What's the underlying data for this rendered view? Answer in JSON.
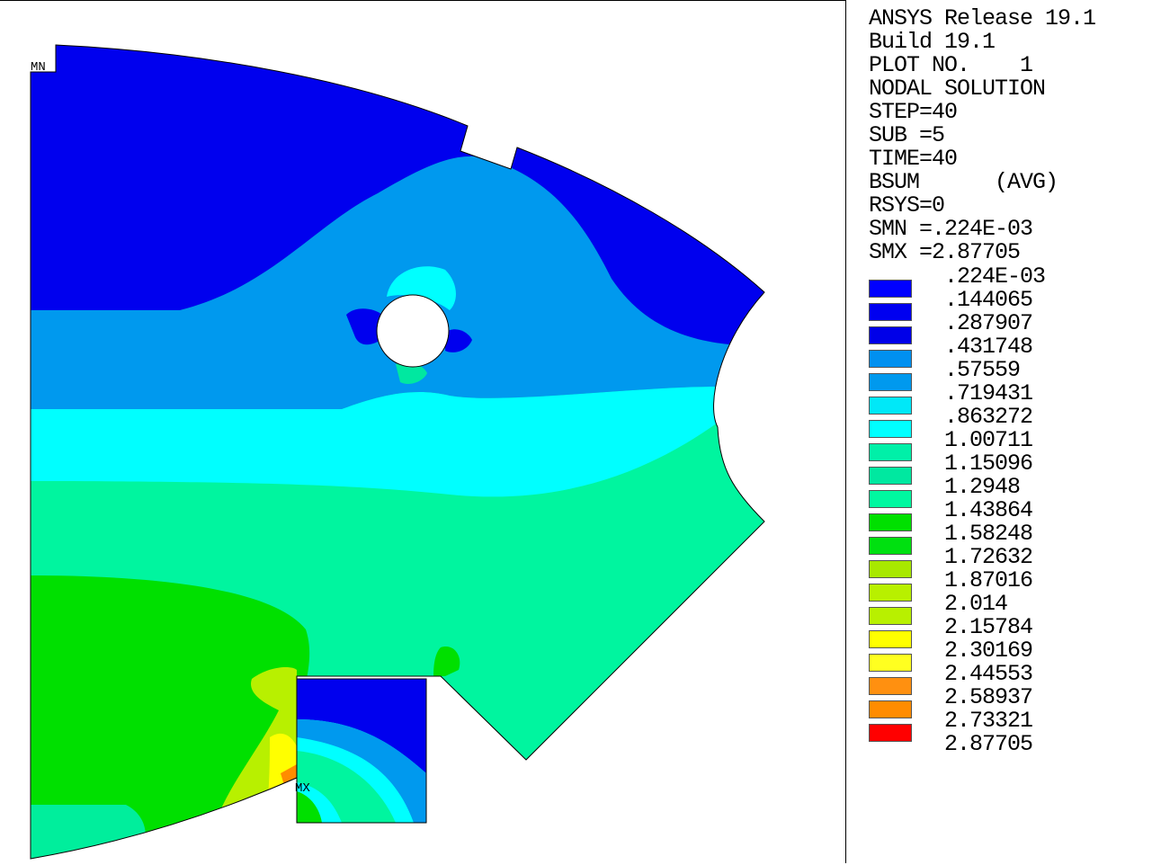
{
  "header": {
    "lines": [
      "ANSYS Release 19.1",
      "Build 19.1",
      "PLOT NO.    1",
      "NODAL SOLUTION",
      "STEP=40",
      "SUB =5",
      "TIME=40",
      "BSUM      (AVG)",
      "RSYS=0",
      "SMN =.224E-03",
      "SMX =2.87705"
    ]
  },
  "markers": {
    "min": "MN",
    "max": "MX"
  },
  "legend": {
    "colors": [
      "#0000ff",
      "#0000f0",
      "#0000e8",
      "#0090f0",
      "#0099ee",
      "#00e8f8",
      "#00ffff",
      "#00f0a8",
      "#00e8a0",
      "#00f8a0",
      "#00e000",
      "#00e010",
      "#a8e800",
      "#b8f000",
      "#b8f000",
      "#ffff00",
      "#ffff20",
      "#ff9010",
      "#ff8c00",
      "#ff0000"
    ],
    "labels": [
      ".224E-03",
      ".144065",
      ".287907",
      ".431748",
      ".57559",
      ".719431",
      ".863272",
      "1.00711",
      "1.15096",
      "1.2948",
      "1.43864",
      "1.58248",
      "1.72632",
      "1.87016",
      "2.014",
      "2.15784",
      "2.30169",
      "2.44553",
      "2.58937",
      "2.73321"
    ],
    "final_label": "2.87705"
  }
}
